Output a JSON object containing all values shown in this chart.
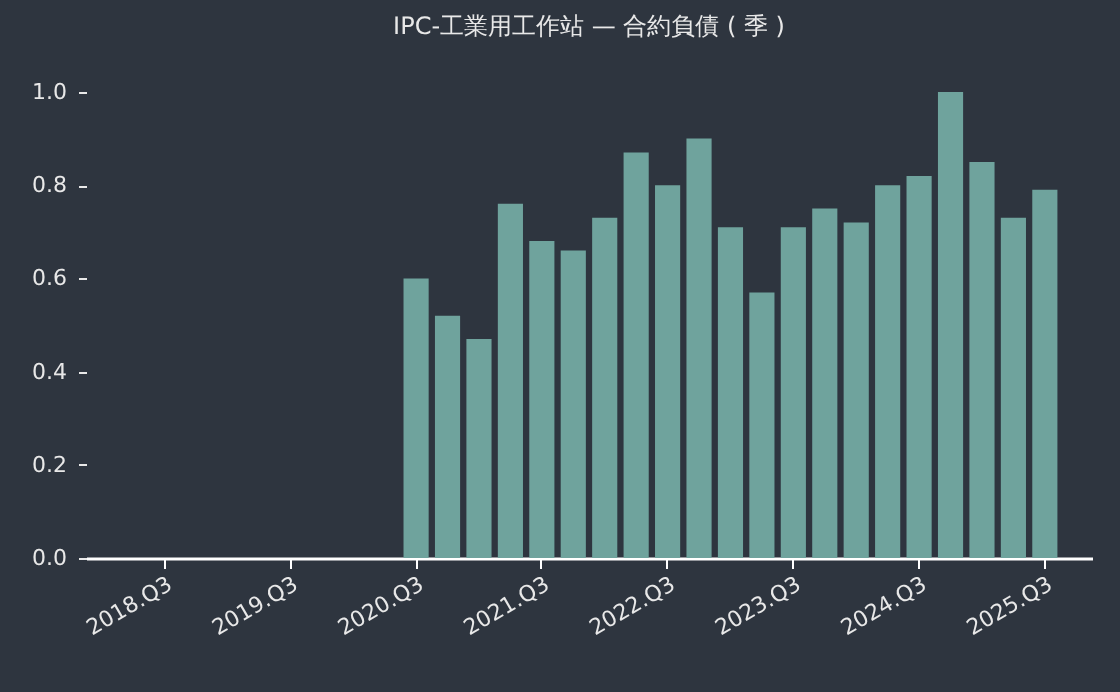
{
  "chart_data": {
    "type": "bar",
    "title": "IPC-工業用工作站 — 合約負債 ( 季 )",
    "color": "#6fa39d",
    "categories": [
      null,
      null,
      "2018.Q3",
      null,
      null,
      null,
      "2019.Q3",
      null,
      null,
      null,
      "2020.Q3",
      null,
      null,
      null,
      "2021.Q3",
      null,
      null,
      null,
      "2022.Q3",
      null,
      null,
      null,
      "2023.Q3",
      null,
      null,
      null,
      "2024.Q3",
      null,
      null,
      null,
      "2025.Q3",
      null
    ],
    "values": [
      null,
      null,
      null,
      null,
      null,
      null,
      null,
      null,
      null,
      null,
      0.6,
      0.52,
      0.47,
      0.76,
      0.68,
      0.66,
      0.73,
      0.87,
      0.8,
      0.9,
      0.71,
      0.57,
      0.71,
      0.75,
      0.72,
      0.8,
      0.82,
      1.0,
      0.85,
      0.73,
      0.79,
      null
    ],
    "ylim": [
      0,
      1.0
    ],
    "yticks": [
      {
        "value": 0,
        "label": "0.0"
      },
      {
        "value": 0.2,
        "label": "0.2"
      },
      {
        "value": 0.4,
        "label": "0.4"
      },
      {
        "value": 0.6,
        "label": "0.6"
      },
      {
        "value": 0.8,
        "label": "0.8"
      },
      {
        "value": 1.0,
        "label": "1.0"
      }
    ],
    "grid": false
  }
}
